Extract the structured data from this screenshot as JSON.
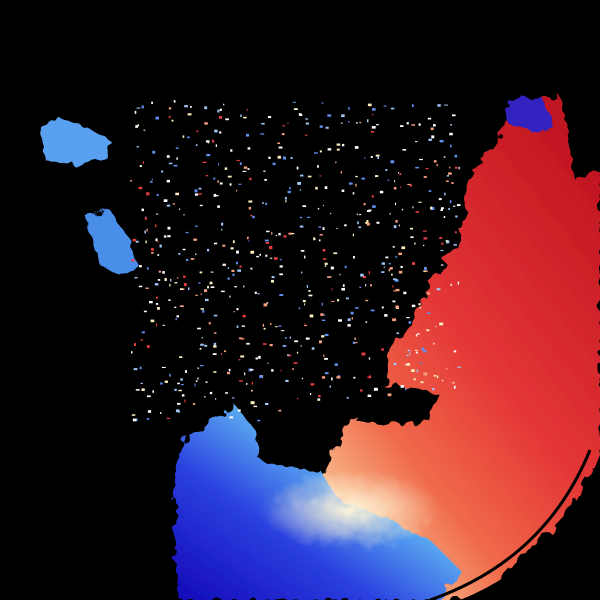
{
  "image": {
    "kind": "doppler-radar-velocity-field",
    "background": "#000000",
    "colors": {
      "outbound_strong": "#c0101e",
      "outbound": "#e83a3a",
      "outbound_weak": "#f7a070",
      "near_zero": "#fff2d0",
      "inbound_weak": "#9fd8f5",
      "inbound": "#3f8fe8",
      "inbound_strong": "#1a10c8"
    }
  }
}
